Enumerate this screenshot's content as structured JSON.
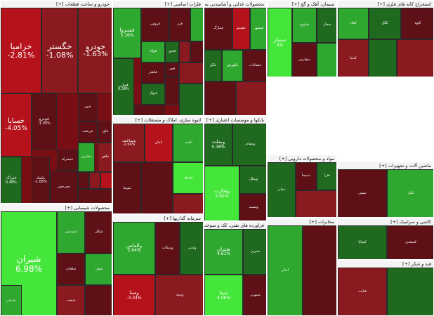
{
  "palette": {
    "strong_neg": "#b5121b",
    "mid_neg": "#8a1a1f",
    "weak_neg": "#5e1016",
    "flat": "#3b2a1f",
    "weak_pos": "#1f6a1f",
    "mid_pos": "#2fa82f",
    "strong_pos": "#45e63a"
  },
  "chart_data": {
    "type": "treemap",
    "sectors": [
      {
        "label": "خودرو و ساخت قطعات [+]",
        "tiles": [
          {
            "name": "خزامیا",
            "change": "-2.81%"
          },
          {
            "name": "خگستر",
            "change": "-1.08%"
          },
          {
            "name": "خودرو",
            "change": "-1.63%"
          },
          {
            "name": "خسایا",
            "change": "-4.05%"
          },
          {
            "name": "ختور",
            "change": ""
          },
          {
            "name": "خریخت",
            "change": ""
          },
          {
            "name": "خاور",
            "change": ""
          },
          {
            "name": "خچرخش",
            "change": ""
          },
          {
            "name": "خودرو",
            "change": "-1.93%"
          },
          {
            "name": "ختراک",
            "change": "0.48%"
          },
          {
            "name": "خکمک",
            "change": "-1.08%"
          },
          {
            "name": "خمحرکه",
            "change": ""
          },
          {
            "name": "خپارس",
            "change": ""
          },
          {
            "name": "خاهن",
            "change": ""
          }
        ]
      },
      {
        "label": "فلزات اساسی [+]",
        "tiles": [
          {
            "name": "فسبزوا",
            "change": "5.16%"
          },
          {
            "name": "فولاد",
            "change": ""
          },
          {
            "name": "فخوز",
            "change": ""
          },
          {
            "name": "فملی",
            "change": "0.39%"
          },
          {
            "name": "فباهنر",
            "change": ""
          },
          {
            "name": "فجر",
            "change": ""
          },
          {
            "name": "فنوال",
            "change": ""
          },
          {
            "name": "فروس",
            "change": ""
          },
          {
            "name": "فزر",
            "change": ""
          }
        ]
      },
      {
        "label": "محصولات غذایی و آشامیدنی به جز قند و شکر [+]",
        "tiles": [
          {
            "name": "غمارگ",
            "change": ""
          },
          {
            "name": "غصینو",
            "change": ""
          },
          {
            "name": "غبشهر",
            "change": ""
          },
          {
            "name": "غگل",
            "change": ""
          },
          {
            "name": "غکورش",
            "change": ""
          },
          {
            "name": "غشاذاب",
            "change": ""
          }
        ]
      },
      {
        "label": "سیمان، آهک و گچ [+]",
        "tiles": [
          {
            "name": "سمتاز",
            "change": "5%"
          },
          {
            "name": "ساروم",
            "change": ""
          },
          {
            "name": "سفار",
            "change": ""
          },
          {
            "name": "سفارس",
            "change": ""
          }
        ]
      },
      {
        "label": "استخراج کانه های فلزی [+]",
        "tiles": [
          {
            "name": "کچاد",
            "change": ""
          },
          {
            "name": "کگل",
            "change": ""
          },
          {
            "name": "کاوه",
            "change": ""
          },
          {
            "name": "کدما",
            "change": ""
          }
        ]
      },
      {
        "label": "انبوه سازی، املاک و مستغلات [+]",
        "tiles": [
          {
            "name": "وساخت",
            "change": "-1.54%"
          },
          {
            "name": "ثامان",
            "change": ""
          },
          {
            "name": "ثاخت",
            "change": ""
          },
          {
            "name": "ثنوسا",
            "change": ""
          },
          {
            "name": "ثشرق",
            "change": ""
          }
        ]
      },
      {
        "label": "بانکها و موسسات اعتباری [+]",
        "tiles": [
          {
            "name": "وبملت",
            "change": "0.38%"
          },
          {
            "name": "وبصادر",
            "change": ""
          },
          {
            "name": "وتجارت",
            "change": "2.82%"
          },
          {
            "name": "وبملل",
            "change": ""
          },
          {
            "name": "وپست",
            "change": ""
          }
        ]
      },
      {
        "label": "محصولات شیمیایی [+]",
        "tiles": [
          {
            "name": "شیران",
            "change": "6.98%"
          },
          {
            "name": "شپدیس",
            "change": ""
          },
          {
            "name": "شکلر",
            "change": ""
          },
          {
            "name": "شلعاب",
            "change": ""
          },
          {
            "name": "شفن",
            "change": ""
          },
          {
            "name": "شبندر",
            "change": ""
          },
          {
            "name": "شنفت",
            "change": ""
          }
        ]
      },
      {
        "label": "سرمایه گذاریها [+]",
        "tiles": [
          {
            "name": "والماس",
            "change": "2.64%"
          },
          {
            "name": "وسکاب",
            "change": ""
          },
          {
            "name": "وغدیر",
            "change": ""
          },
          {
            "name": "وسپه",
            "change": ""
          },
          {
            "name": "وصنا",
            "change": "-3.34%"
          }
        ]
      },
      {
        "label": "فراورده های نفتی، کک و سوخت هسته ای [+]",
        "tiles": [
          {
            "name": "شتران",
            "change": "4.61%"
          },
          {
            "name": "شبریز",
            "change": ""
          },
          {
            "name": "شپنا",
            "change": "4.06%"
          },
          {
            "name": "شبهرن",
            "change": ""
          }
        ]
      },
      {
        "label": "مواد و محصولات دارویی [+]",
        "tiles": [
          {
            "name": "دجابر",
            "change": ""
          },
          {
            "name": "دسبحا",
            "change": ""
          },
          {
            "name": "دفرا",
            "change": ""
          }
        ]
      },
      {
        "label": "ماشین آلات و تجهیزات [+]",
        "tiles": [
          {
            "name": "تپمپی",
            "change": ""
          },
          {
            "name": "تکنار",
            "change": ""
          }
        ]
      },
      {
        "label": "کاشی و سرامیک [+]",
        "tiles": [
          {
            "name": "کساپا",
            "change": ""
          },
          {
            "name": "کسعدی",
            "change": ""
          }
        ]
      },
      {
        "label": "مخابرات [+]",
        "tiles": [
          {
            "name": "اخابر",
            "change": ""
          }
        ]
      },
      {
        "label": "قند و شکر [+]",
        "tiles": [
          {
            "name": "قثابت",
            "change": ""
          }
        ]
      }
    ]
  }
}
